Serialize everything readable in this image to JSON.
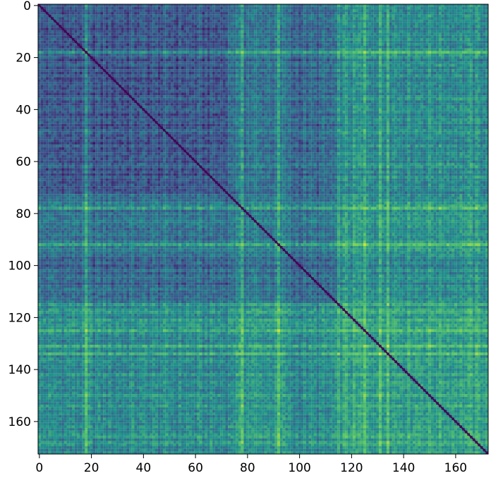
{
  "chart_data": {
    "type": "heatmap",
    "title": "",
    "xlabel": "",
    "ylabel": "",
    "n": 173,
    "xlim": [
      0,
      172
    ],
    "ylim": [
      172,
      0
    ],
    "x_ticks": [
      0,
      20,
      40,
      60,
      80,
      100,
      120,
      140,
      160
    ],
    "y_ticks": [
      0,
      20,
      40,
      60,
      80,
      100,
      120,
      140,
      160
    ],
    "x_tick_labels": [
      "0",
      "20",
      "40",
      "60",
      "80",
      "100",
      "120",
      "140",
      "160"
    ],
    "y_tick_labels": [
      "0",
      "20",
      "40",
      "60",
      "80",
      "100",
      "120",
      "140",
      "160"
    ],
    "colormap": "viridis",
    "value_range": [
      0,
      1
    ],
    "diagonal_value": 0,
    "colormap_colors": [
      "#440154",
      "#3b528b",
      "#21918c",
      "#5ec962",
      "#fde725"
    ],
    "cell_values_visible": false,
    "blocks": [
      {
        "rows": [
          0,
          115
        ],
        "cols": [
          0,
          72
        ],
        "level": "low"
      },
      {
        "rows": [
          0,
          115
        ],
        "cols": [
          72,
          115
        ],
        "level": "low-medium"
      },
      {
        "rows": [
          0,
          173
        ],
        "cols": [
          115,
          173
        ],
        "level": "medium"
      },
      {
        "rows": [
          115,
          173
        ],
        "cols": [
          0,
          115
        ],
        "level": "medium-high"
      }
    ],
    "bright_lines": [
      18,
      78,
      92,
      125,
      131,
      134
    ]
  }
}
